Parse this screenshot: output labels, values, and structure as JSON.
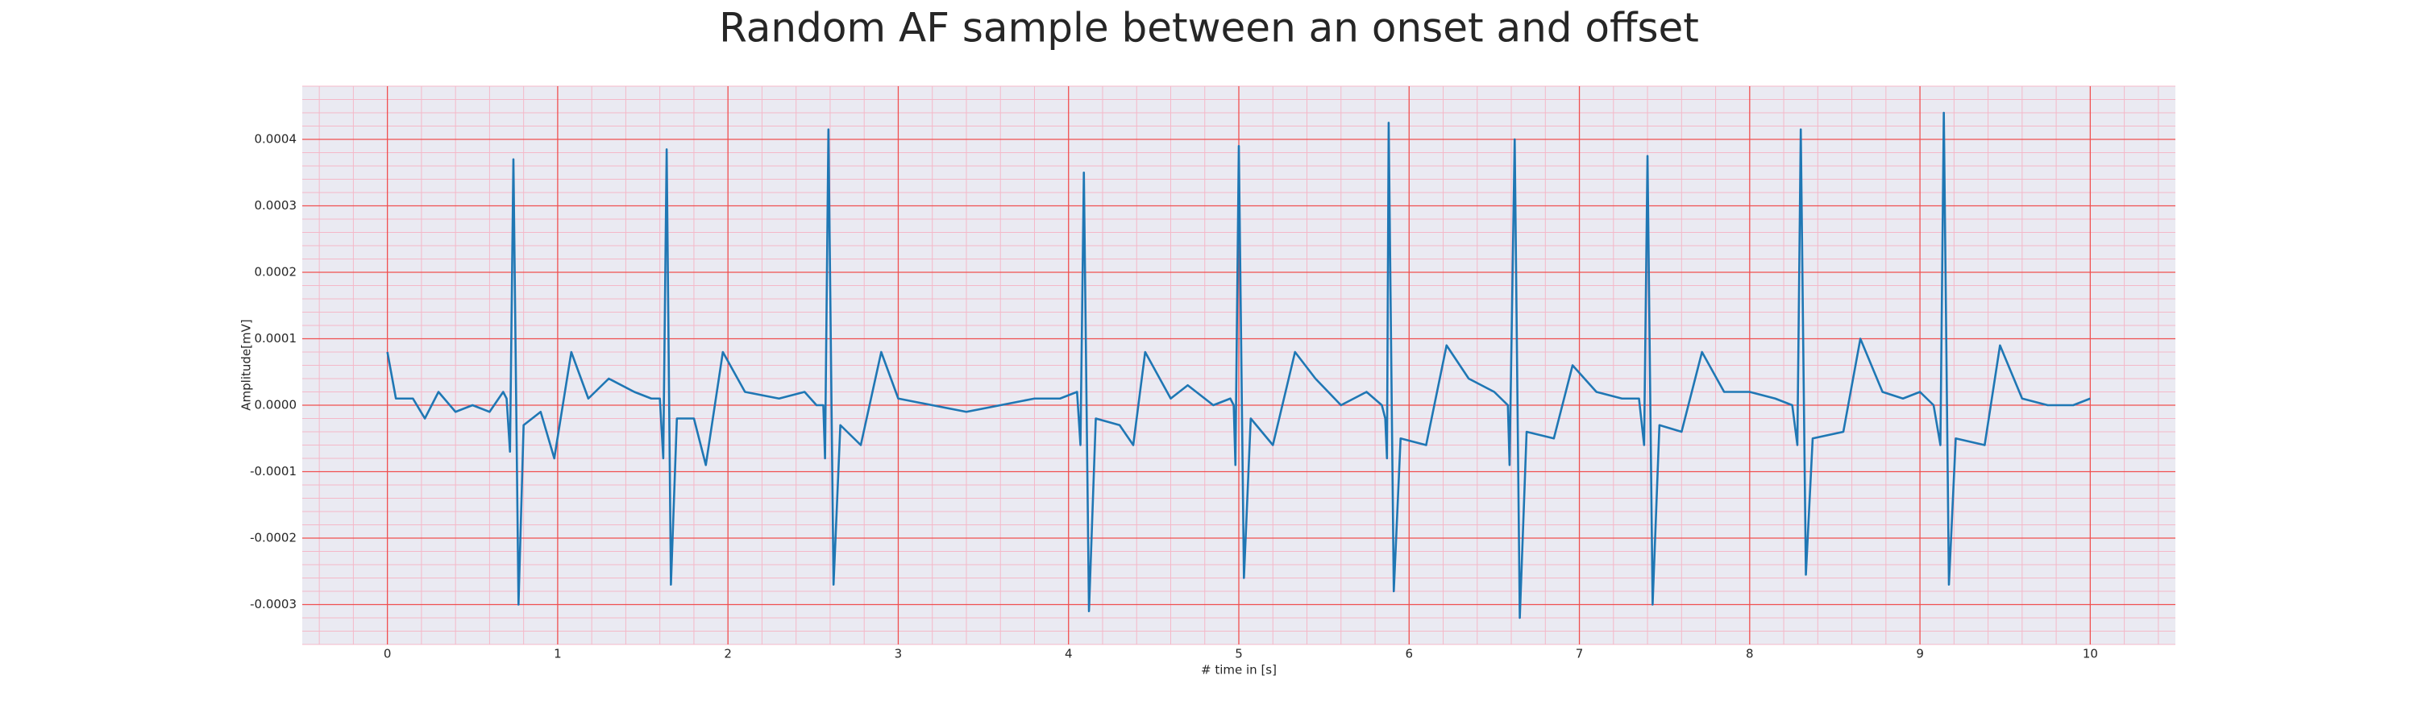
{
  "chart_data": {
    "type": "line",
    "title": "Random AF sample between an onset and offset",
    "xlabel": "# time in [s]",
    "ylabel": "Amplitude[mV]",
    "color": "#1f77b4",
    "grid": true,
    "minor_grid": true,
    "xlim": [
      -0.5,
      10.5
    ],
    "ylim": [
      -0.00036,
      0.00048
    ],
    "xticks": [
      0,
      1,
      2,
      3,
      4,
      5,
      6,
      7,
      8,
      9,
      10
    ],
    "yticks": [
      {
        "value": -0.0003,
        "label": "-0.0003"
      },
      {
        "value": -0.0002,
        "label": "-0.0002"
      },
      {
        "value": -0.0001,
        "label": "-0.0001"
      },
      {
        "value": 0,
        "label": "0.0000"
      },
      {
        "value": 0.0001,
        "label": "0.0001"
      },
      {
        "value": 0.0002,
        "label": "0.0002"
      },
      {
        "value": 0.0003,
        "label": "0.0003"
      },
      {
        "value": 0.0004,
        "label": "0.0004"
      }
    ],
    "x": [
      0,
      0.05,
      0.15,
      0.22,
      0.3,
      0.4,
      0.5,
      0.6,
      0.68,
      0.7,
      0.72,
      0.74,
      0.77,
      0.8,
      0.9,
      0.98,
      1.08,
      1.18,
      1.3,
      1.45,
      1.55,
      1.6,
      1.62,
      1.64,
      1.665,
      1.7,
      1.8,
      1.87,
      1.97,
      2.1,
      2.3,
      2.45,
      2.52,
      2.56,
      2.57,
      2.59,
      2.62,
      2.66,
      2.78,
      2.9,
      3.0,
      3.2,
      3.4,
      3.6,
      3.8,
      3.95,
      4.05,
      4.07,
      4.09,
      4.12,
      4.16,
      4.3,
      4.38,
      4.45,
      4.6,
      4.7,
      4.85,
      4.95,
      4.97,
      4.98,
      5.0,
      5.03,
      5.07,
      5.2,
      5.33,
      5.45,
      5.6,
      5.75,
      5.84,
      5.86,
      5.87,
      5.88,
      5.91,
      5.95,
      6.1,
      6.22,
      6.35,
      6.5,
      6.58,
      6.59,
      6.62,
      6.65,
      6.69,
      6.85,
      6.96,
      7.1,
      7.25,
      7.35,
      7.38,
      7.4,
      7.43,
      7.47,
      7.6,
      7.72,
      7.85,
      8.0,
      8.15,
      8.25,
      8.28,
      8.3,
      8.33,
      8.37,
      8.55,
      8.65,
      8.78,
      8.9,
      9.0,
      9.08,
      9.12,
      9.14,
      9.17,
      9.21,
      9.38,
      9.47,
      9.6,
      9.75,
      9.9,
      10.0
    ],
    "values": [
      8e-05,
      1e-05,
      1e-05,
      -2e-05,
      2e-05,
      -1e-05,
      0,
      -1e-05,
      2e-05,
      1e-05,
      -7e-05,
      0.00037,
      -0.0003,
      -3e-05,
      -1e-05,
      -8e-05,
      8e-05,
      1e-05,
      4e-05,
      2e-05,
      1e-05,
      1e-05,
      -8e-05,
      0.000385,
      -0.00027,
      -2e-05,
      -2e-05,
      -9e-05,
      8e-05,
      2e-05,
      1e-05,
      2e-05,
      0,
      0,
      -8e-05,
      0.000415,
      -0.00027,
      -3e-05,
      -6e-05,
      8e-05,
      1e-05,
      0,
      -1e-05,
      0,
      1e-05,
      1e-05,
      2e-05,
      -6e-05,
      0.00035,
      -0.00031,
      -2e-05,
      -3e-05,
      -6e-05,
      8e-05,
      1e-05,
      3e-05,
      0,
      1e-05,
      0,
      -9e-05,
      0.00039,
      -0.00026,
      -2e-05,
      -6e-05,
      8e-05,
      4e-05,
      0,
      2e-05,
      0,
      -2e-05,
      -8e-05,
      0.000425,
      -0.00028,
      -5e-05,
      -6e-05,
      9e-05,
      4e-05,
      2e-05,
      0,
      -9e-05,
      0.0004,
      -0.00032,
      -4e-05,
      -5e-05,
      6e-05,
      2e-05,
      1e-05,
      1e-05,
      -6e-05,
      0.000375,
      -0.0003,
      -3e-05,
      -4e-05,
      8e-05,
      2e-05,
      2e-05,
      1e-05,
      0,
      -6e-05,
      0.000415,
      -0.000255,
      -5e-05,
      -4e-05,
      0.0001,
      2e-05,
      1e-05,
      2e-05,
      0,
      -6e-05,
      0.00044,
      -0.00027,
      -5e-05,
      -6e-05,
      9e-05,
      1e-05,
      0,
      0,
      1e-05
    ]
  }
}
